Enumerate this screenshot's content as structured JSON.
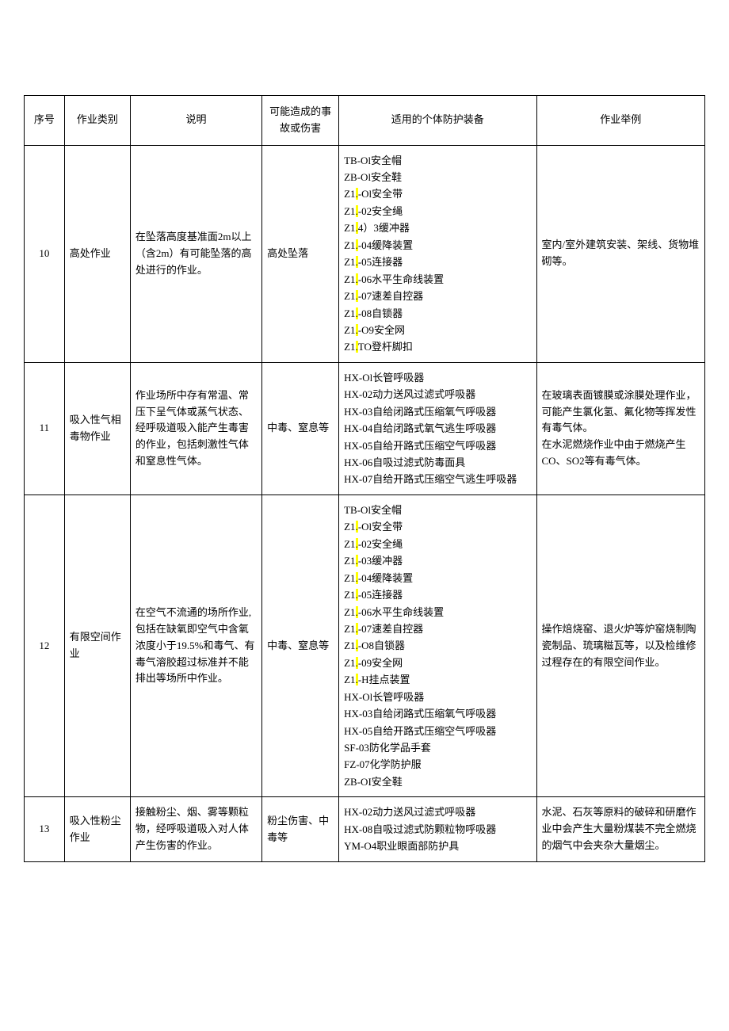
{
  "table": {
    "headers": {
      "seq": "序号",
      "type": "作业类别",
      "desc": "说明",
      "hazard": "可能造成的事故或伤害",
      "equip": "适用的个体防护装备",
      "example": "作业举例"
    },
    "rows": [
      {
        "seq": "10",
        "type": "高处作业",
        "desc": "在坠落高度基准面2m以上（含2m）有可能坠落的高处进行的作业。",
        "hazard": "高处坠落",
        "equip": [
          {
            "pre": "TB-Ol安全帽"
          },
          {
            "pre": "ZB-Ol安全鞋"
          },
          {
            "pre": "Z1",
            "hl": ".",
            "post": "-Ol安全带"
          },
          {
            "pre": "Z1",
            "hl": ".",
            "post": "-02安全绳"
          },
          {
            "pre": "Z1",
            "hl": ".",
            "post": "4）3缓冲器"
          },
          {
            "pre": "Z1",
            "hl": ".",
            "post": "-04缓降装置"
          },
          {
            "pre": "Z1",
            "hl": ".",
            "post": "-05连接器"
          },
          {
            "pre": "Z1",
            "hl": ".",
            "post": "-06水平生命线装置"
          },
          {
            "pre": "Z1",
            "hl": ".",
            "post": "-07速差自控器"
          },
          {
            "pre": "Z1",
            "hl": ".",
            "post": "-08自锁器"
          },
          {
            "pre": "Z1",
            "hl": ".",
            "post": "-O9安全网"
          },
          {
            "pre": "Z1",
            "hl": ".",
            "post": "TO登杆脚扣"
          }
        ],
        "example": "室内/室外建筑安装、架线、货物堆砌等。"
      },
      {
        "seq": "11",
        "type": "吸入性气相毒物作业",
        "desc": "作业场所中存有常温、常压下呈气体或蒸气状态、经呼吸道吸入能产生毒害的作业，包括刺激性气体和窒息性气体。",
        "hazard": "中毒、窒息等",
        "equip": [
          {
            "pre": "HX-Ol长管呼吸器"
          },
          {
            "pre": "HX-02动力送风过滤式呼吸器"
          },
          {
            "pre": "HX-03自给闭路式压缩氧气呼吸器"
          },
          {
            "pre": "HX-04自给闭路式氧气逃生呼吸器"
          },
          {
            "pre": "HX-05自给开路式压缩空气呼吸器"
          },
          {
            "pre": "HX-06自吸过滤式防毒面具"
          },
          {
            "pre": "HX-07自给开路式压缩空气逃生呼吸器"
          }
        ],
        "example": "在玻璃表面镀膜或涂膜处理作业，可能产生氯化氢、氟化物等挥发性有毒气体。\n在水泥燃烧作业中由于燃烧产生CO、SO2等有毒气体。"
      },
      {
        "seq": "12",
        "type": "有限空间作业",
        "desc": "在空气不流通的场所作业, 包括在缺氧即空气中含氧浓度小于19.5%和毒气、有毒气溶胶超过标准并不能排出等场所中作业。",
        "hazard": "中毒、窒息等",
        "equip": [
          {
            "pre": "TB-Ol安全帽"
          },
          {
            "pre": "Z1",
            "hl": ".",
            "post": "-Ol安全带"
          },
          {
            "pre": "Z1",
            "hl": ".",
            "post": "-02安全绳"
          },
          {
            "pre": "Z1",
            "hl": ".",
            "post": "-03缓冲器"
          },
          {
            "pre": "Z1",
            "hl": ".",
            "post": "-04缓降装置"
          },
          {
            "pre": "Z1",
            "hl": ".",
            "post": "-05连接器"
          },
          {
            "pre": "Z1",
            "hl": ".",
            "post": "-06水平生命线装置"
          },
          {
            "pre": "Z1",
            "hl": ".",
            "post": "-07速差自控器"
          },
          {
            "pre": "Z1",
            "hl": ".",
            "post": "-O8自锁器"
          },
          {
            "pre": "Z1",
            "hl": ".",
            "post": "-09安全网"
          },
          {
            "pre": "Z1",
            "hl": ".",
            "post": "-H挂点装置"
          },
          {
            "pre": "HX-Ol长管呼吸器"
          },
          {
            "pre": "HX-03自给闭路式压缩氧气呼吸器"
          },
          {
            "pre": "HX-05自给开路式压缩空气呼吸器"
          },
          {
            "pre": "SF-03防化学品手套"
          },
          {
            "pre": "FZ-07化学防护服"
          },
          {
            "pre": "ZB-OI安全鞋"
          }
        ],
        "example": "操作焙烧窑、退火炉等炉窑烧制陶瓷制品、琉璃糍瓦等，以及检维修过程存在的有限空间作业。"
      },
      {
        "seq": "13",
        "type": "吸入性粉尘作业",
        "desc": "接触粉尘、烟、雾等颗粒物，经呼吸道吸入对人体产生伤害的作业。",
        "hazard": "粉尘伤害、中毒等",
        "equip": [
          {
            "pre": "HX-02动力送风过滤式呼吸器"
          },
          {
            "pre": "HX-08自吸过滤式防颗粒物呼吸器"
          },
          {
            "pre": "YM-O4职业眼面部防护具"
          }
        ],
        "example": "水泥、石灰等原料的破碎和研磨作业中会产生大量粉煤装不完全燃烧的烟气中会夹杂大量烟尘。"
      }
    ]
  },
  "style": {
    "highlight_color": "#ffff00",
    "border_color": "#000000",
    "bg_color": "#ffffff",
    "text_color": "#000000",
    "font_size": 13
  }
}
